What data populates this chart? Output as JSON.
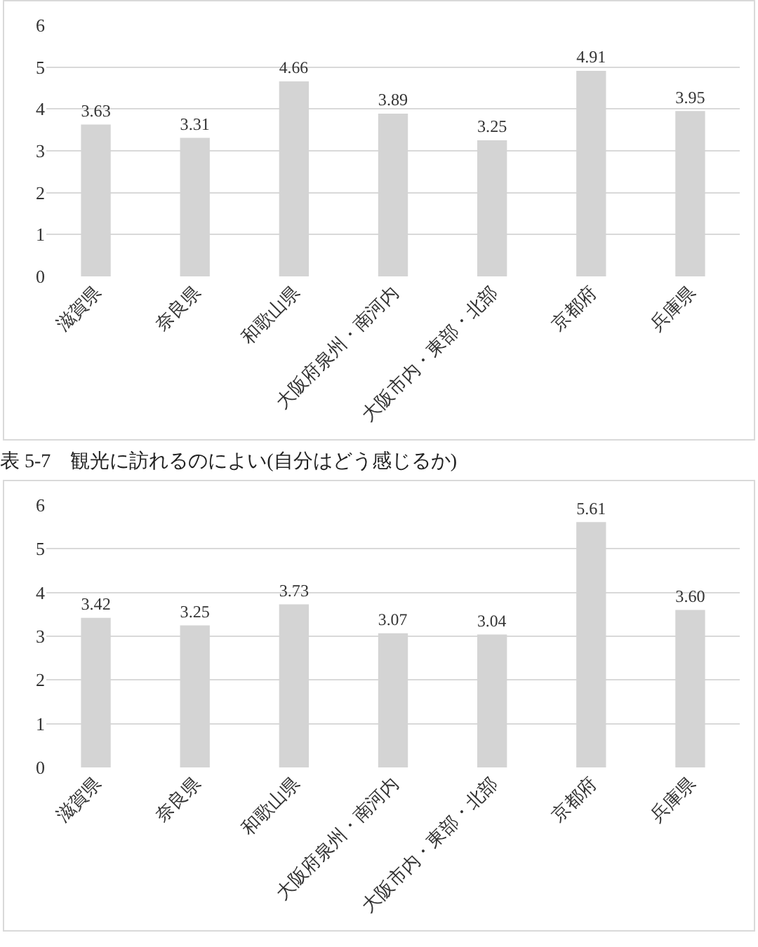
{
  "chart_data": [
    {
      "type": "bar",
      "categories": [
        "滋賀県",
        "奈良県",
        "和歌山県",
        "大阪府泉州・南河内",
        "大阪市内・東部・北部",
        "京都府",
        "兵庫県"
      ],
      "values": [
        3.63,
        3.31,
        4.66,
        3.89,
        3.25,
        4.91,
        3.95
      ],
      "color": "#d4d4d4",
      "value_labels": [
        "3.63",
        "3.31",
        "4.66",
        "3.89",
        "3.25",
        "4.91",
        "3.95"
      ],
      "ylim": [
        0,
        6
      ],
      "yticks": [
        0,
        1,
        2,
        3,
        4,
        5,
        6
      ],
      "grid": "y"
    },
    {
      "type": "bar",
      "title": "表 5-7　観光に訪れるのによい(自分はどう感じるか)",
      "categories": [
        "滋賀県",
        "奈良県",
        "和歌山県",
        "大阪府泉州・南河内",
        "大阪市内・東部・北部",
        "京都府",
        "兵庫県"
      ],
      "values": [
        3.42,
        3.25,
        3.73,
        3.07,
        3.04,
        5.61,
        3.6
      ],
      "color": "#d4d4d4",
      "value_labels": [
        "3.42",
        "3.25",
        "3.73",
        "3.07",
        "3.04",
        "5.61",
        "3.60"
      ],
      "ylim": [
        0,
        6
      ],
      "yticks": [
        0,
        1,
        2,
        3,
        4,
        5,
        6
      ],
      "grid": "y"
    }
  ]
}
